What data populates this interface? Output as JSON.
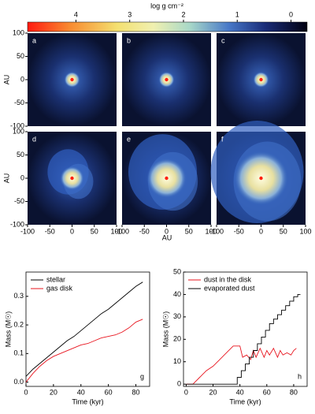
{
  "chart_data": [
    {
      "type": "colorbar",
      "title": "log g cm⁻²",
      "xlim": [
        4.9,
        -0.3
      ],
      "xticks": [
        4,
        3,
        2,
        1,
        0
      ]
    },
    {
      "type": "image",
      "panels": [
        "a",
        "b",
        "c",
        "d",
        "e",
        "f"
      ],
      "ylabel": "AU",
      "xlabel": "AU",
      "xlim": [
        -100,
        100
      ],
      "ylim": [
        -100,
        100
      ],
      "xticks": [
        -100,
        -50,
        0,
        50,
        100
      ],
      "yticks": [
        100,
        50,
        0,
        -50,
        -100
      ]
    },
    {
      "type": "line",
      "panel_label": "g",
      "xlabel": "Time (kyr)",
      "ylabel": "Mass (M☉)",
      "xlim": [
        0,
        90
      ],
      "ylim": [
        -0.015,
        0.385
      ],
      "xticks": [
        0,
        20,
        40,
        60,
        80
      ],
      "yticks": [
        {
          "value": 0,
          "label": "0.0"
        },
        0.1,
        0.2,
        0.3
      ],
      "legend": "upper-left",
      "series": [
        {
          "name": "stellar",
          "color": "#000000",
          "x": [
            0,
            5,
            10,
            15,
            20,
            25,
            30,
            35,
            40,
            45,
            50,
            55,
            60,
            65,
            70,
            75,
            80,
            85
          ],
          "values": [
            0.02,
            0.045,
            0.065,
            0.085,
            0.105,
            0.125,
            0.145,
            0.16,
            0.18,
            0.2,
            0.22,
            0.24,
            0.255,
            0.275,
            0.295,
            0.315,
            0.335,
            0.35
          ]
        },
        {
          "name": "gas disk",
          "color": "#e8141e",
          "x": [
            0,
            5,
            10,
            15,
            20,
            25,
            30,
            35,
            40,
            45,
            50,
            55,
            60,
            65,
            70,
            75,
            80,
            85
          ],
          "values": [
            0.0,
            0.03,
            0.055,
            0.075,
            0.09,
            0.1,
            0.11,
            0.12,
            0.13,
            0.135,
            0.145,
            0.155,
            0.16,
            0.165,
            0.175,
            0.19,
            0.21,
            0.22
          ]
        }
      ]
    },
    {
      "type": "line",
      "panel_label": "h",
      "xlabel": "Time (kyr)",
      "ylabel": "Mass (M☉)",
      "xlim": [
        -2,
        90
      ],
      "ylim": [
        -1,
        50
      ],
      "xticks": [
        0,
        20,
        40,
        60,
        80
      ],
      "yticks": [
        0,
        10,
        20,
        30,
        40,
        50
      ],
      "legend": "upper-left",
      "series": [
        {
          "name": "dust in the disk",
          "color": "#e8141e",
          "x": [
            0,
            5,
            10,
            15,
            20,
            25,
            30,
            35,
            38,
            40,
            42,
            45,
            48,
            50,
            52,
            55,
            58,
            60,
            62,
            65,
            68,
            70,
            72,
            75,
            78,
            80,
            82
          ],
          "values": [
            0,
            0,
            3,
            6,
            8,
            11,
            14,
            17,
            17,
            17,
            12,
            13,
            11,
            15,
            12,
            16,
            12,
            15,
            13,
            16,
            12,
            15,
            13,
            14,
            13,
            15,
            16
          ]
        },
        {
          "name": "evaporated dust",
          "color": "#000000",
          "x": [
            0,
            38,
            38,
            41,
            41,
            44,
            44,
            47,
            47,
            50,
            50,
            53,
            53,
            56,
            56,
            59,
            59,
            62,
            62,
            65,
            65,
            68,
            68,
            71,
            71,
            74,
            74,
            77,
            77,
            80,
            80,
            83,
            83,
            85
          ],
          "values": [
            0,
            0,
            3,
            3,
            6,
            6,
            9,
            9,
            12,
            12,
            15,
            15,
            18,
            18,
            21,
            21,
            24,
            24,
            27,
            27,
            29,
            29,
            31,
            31,
            33,
            33,
            35,
            35,
            37,
            37,
            39,
            39,
            40,
            40
          ]
        }
      ]
    }
  ]
}
